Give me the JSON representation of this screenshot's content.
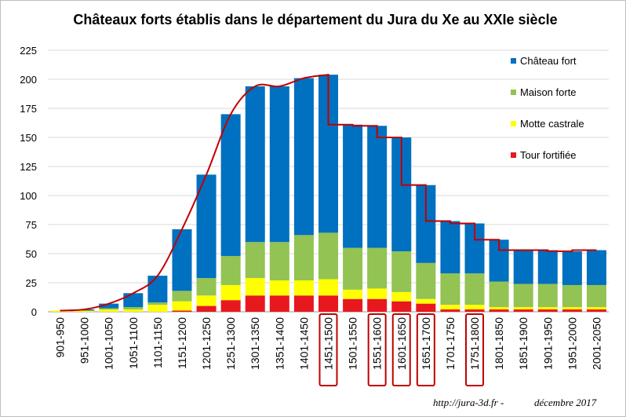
{
  "chart_data": {
    "type": "bar",
    "stacked": true,
    "title": "Châteaux forts établis dans le département du Jura du Xe au XXIe siècle",
    "xlabel": "",
    "ylabel": "",
    "ylim": [
      0,
      225
    ],
    "yticks": [
      "0",
      "25",
      "50",
      "75",
      "100",
      "125",
      "150",
      "175",
      "200",
      "225"
    ],
    "grid": true,
    "legend_position": "right",
    "categories": [
      "901-950",
      "951-1000",
      "1001-1050",
      "1051-1100",
      "1101-1150",
      "1151-1200",
      "1201-1250",
      "1251-1300",
      "1301-1350",
      "1351-1400",
      "1401-1450",
      "1451-1500",
      "1501-1550",
      "1551-1600",
      "1601-1650",
      "1651-1700",
      "1701-1750",
      "1751-1800",
      "1801-1850",
      "1851-1900",
      "1901-1950",
      "1951-2000",
      "2001-2050"
    ],
    "highlighted_categories": [
      "1451-1500",
      "1551-1600",
      "1601-1650",
      "1651-1700",
      "1751-1800"
    ],
    "series": [
      {
        "name": "Tour fortifiée",
        "color": "#e8181f",
        "values": [
          0,
          0,
          0,
          0,
          0,
          1,
          5,
          10,
          14,
          14,
          14,
          14,
          11,
          11,
          9,
          7,
          2,
          2,
          2,
          2,
          2,
          2,
          2
        ]
      },
      {
        "name": "Motte castrale",
        "color": "#ffff00",
        "values": [
          1,
          1,
          2,
          2,
          6,
          8,
          9,
          13,
          15,
          13,
          13,
          14,
          8,
          9,
          8,
          4,
          4,
          4,
          2,
          2,
          2,
          2,
          2
        ]
      },
      {
        "name": "Maison forte",
        "color": "#92c353",
        "values": [
          0,
          0,
          1,
          2,
          2,
          9,
          15,
          25,
          31,
          33,
          39,
          40,
          36,
          35,
          35,
          31,
          27,
          27,
          22,
          20,
          20,
          19,
          19
        ]
      },
      {
        "name": "Château fort",
        "color": "#0070c0",
        "values": [
          0,
          1,
          4,
          12,
          23,
          53,
          89,
          122,
          134,
          134,
          135,
          136,
          106,
          105,
          98,
          67,
          45,
          43,
          36,
          29,
          29,
          29,
          30
        ]
      }
    ],
    "total_line": {
      "color": "#c00000",
      "values": [
        1,
        2,
        7,
        16,
        31,
        71,
        118,
        170,
        194,
        194,
        201,
        204,
        161,
        160,
        150,
        109,
        78,
        76,
        62,
        53,
        53,
        52,
        53
      ]
    }
  },
  "footer": {
    "source": "http://jura-3d.fr  -",
    "date": "décembre 2017"
  }
}
